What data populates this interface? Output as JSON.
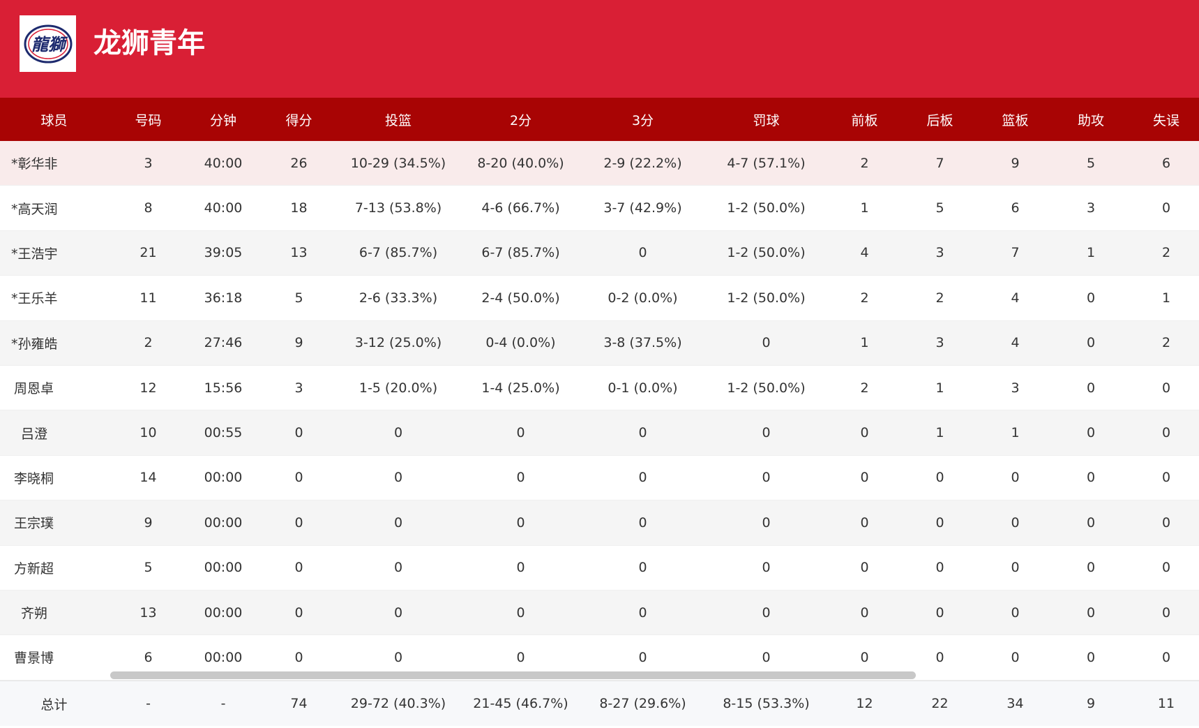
{
  "header": {
    "team_name": "龙狮青年",
    "brand_color": "#d91f35",
    "logo_text": "龍獅"
  },
  "table": {
    "columns": [
      "球员",
      "号码",
      "分钟",
      "得分",
      "投篮",
      "2分",
      "3分",
      "罚球",
      "前板",
      "后板",
      "篮板",
      "助攻",
      "失误"
    ],
    "rows": [
      {
        "player": "*彰华非",
        "number": "3",
        "minutes": "40:00",
        "points": "26",
        "fg": "10-29 (34.5%)",
        "two": "8-20 (40.0%)",
        "three": "2-9 (22.2%)",
        "ft": "4-7 (57.1%)",
        "oreb": "2",
        "dreb": "7",
        "reb": "9",
        "ast": "5",
        "to": "6"
      },
      {
        "player": "*高天润",
        "number": "8",
        "minutes": "40:00",
        "points": "18",
        "fg": "7-13 (53.8%)",
        "two": "4-6 (66.7%)",
        "three": "3-7 (42.9%)",
        "ft": "1-2 (50.0%)",
        "oreb": "1",
        "dreb": "5",
        "reb": "6",
        "ast": "3",
        "to": "0"
      },
      {
        "player": "*王浩宇",
        "number": "21",
        "minutes": "39:05",
        "points": "13",
        "fg": "6-7 (85.7%)",
        "two": "6-7 (85.7%)",
        "three": "0",
        "ft": "1-2 (50.0%)",
        "oreb": "4",
        "dreb": "3",
        "reb": "7",
        "ast": "1",
        "to": "2"
      },
      {
        "player": "*王乐羊",
        "number": "11",
        "minutes": "36:18",
        "points": "5",
        "fg": "2-6 (33.3%)",
        "two": "2-4 (50.0%)",
        "three": "0-2 (0.0%)",
        "ft": "1-2 (50.0%)",
        "oreb": "2",
        "dreb": "2",
        "reb": "4",
        "ast": "0",
        "to": "1"
      },
      {
        "player": "*孙雍皓",
        "number": "2",
        "minutes": "27:46",
        "points": "9",
        "fg": "3-12 (25.0%)",
        "two": "0-4 (0.0%)",
        "three": "3-8 (37.5%)",
        "ft": "0",
        "oreb": "1",
        "dreb": "3",
        "reb": "4",
        "ast": "0",
        "to": "2"
      },
      {
        "player": "周恩卓",
        "number": "12",
        "minutes": "15:56",
        "points": "3",
        "fg": "1-5 (20.0%)",
        "two": "1-4 (25.0%)",
        "three": "0-1 (0.0%)",
        "ft": "1-2 (50.0%)",
        "oreb": "2",
        "dreb": "1",
        "reb": "3",
        "ast": "0",
        "to": "0"
      },
      {
        "player": "吕澄",
        "number": "10",
        "minutes": "00:55",
        "points": "0",
        "fg": "0",
        "two": "0",
        "three": "0",
        "ft": "0",
        "oreb": "0",
        "dreb": "1",
        "reb": "1",
        "ast": "0",
        "to": "0"
      },
      {
        "player": "李晓桐",
        "number": "14",
        "minutes": "00:00",
        "points": "0",
        "fg": "0",
        "two": "0",
        "three": "0",
        "ft": "0",
        "oreb": "0",
        "dreb": "0",
        "reb": "0",
        "ast": "0",
        "to": "0"
      },
      {
        "player": "王宗璞",
        "number": "9",
        "minutes": "00:00",
        "points": "0",
        "fg": "0",
        "two": "0",
        "three": "0",
        "ft": "0",
        "oreb": "0",
        "dreb": "0",
        "reb": "0",
        "ast": "0",
        "to": "0"
      },
      {
        "player": "方新超",
        "number": "5",
        "minutes": "00:00",
        "points": "0",
        "fg": "0",
        "two": "0",
        "three": "0",
        "ft": "0",
        "oreb": "0",
        "dreb": "0",
        "reb": "0",
        "ast": "0",
        "to": "0"
      },
      {
        "player": "齐朔",
        "number": "13",
        "minutes": "00:00",
        "points": "0",
        "fg": "0",
        "two": "0",
        "three": "0",
        "ft": "0",
        "oreb": "0",
        "dreb": "0",
        "reb": "0",
        "ast": "0",
        "to": "0"
      },
      {
        "player": "曹景博",
        "number": "6",
        "minutes": "00:00",
        "points": "0",
        "fg": "0",
        "two": "0",
        "three": "0",
        "ft": "0",
        "oreb": "0",
        "dreb": "0",
        "reb": "0",
        "ast": "0",
        "to": "0"
      }
    ],
    "totals": {
      "player": "总计",
      "number": "-",
      "minutes": "-",
      "points": "74",
      "fg": "29-72 (40.3%)",
      "two": "21-45 (46.7%)",
      "three": "8-27 (29.6%)",
      "ft": "8-15 (53.3%)",
      "oreb": "12",
      "dreb": "22",
      "reb": "34",
      "ast": "9",
      "to": "11"
    }
  },
  "colors": {
    "header_bg": "#d91f35",
    "table_head_bg": "#a80404",
    "highlight_row": "#f9ebeb"
  }
}
